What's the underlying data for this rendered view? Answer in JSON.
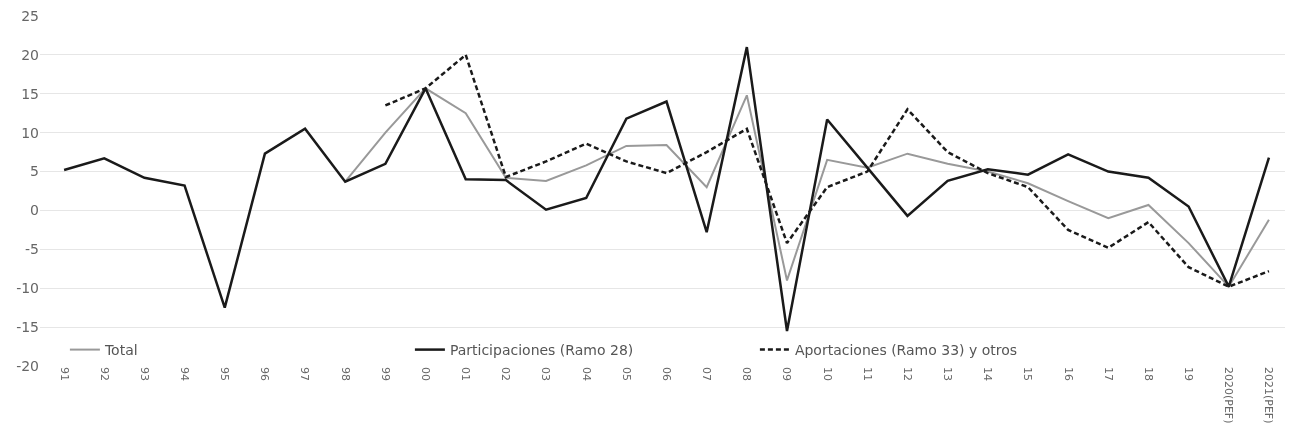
{
  "chart_data": {
    "type": "line",
    "categories": [
      "91",
      "92",
      "93",
      "94",
      "95",
      "96",
      "97",
      "98",
      "99",
      "00",
      "01",
      "02",
      "03",
      "04",
      "05",
      "06",
      "07",
      "08",
      "09",
      "10",
      "11",
      "12",
      "13",
      "14",
      "15",
      "16",
      "17",
      "18",
      "19",
      "2020(PEF)",
      "2021(PEF)"
    ],
    "series": [
      {
        "name": "Total",
        "color": "#999999",
        "line_style": "solid",
        "values": [
          null,
          null,
          null,
          null,
          null,
          null,
          null,
          3.7,
          10,
          15.7,
          12.5,
          4.2,
          3.8,
          5.8,
          8.3,
          8.4,
          3.0,
          14.8,
          -9,
          6.5,
          5.5,
          7.3,
          6.0,
          5.0,
          3.5,
          1.2,
          -1.0,
          0.7,
          -4.2,
          -9.8,
          -1.2
        ]
      },
      {
        "name": "Participaciones (Ramo 28)",
        "color": "#1a1a1a",
        "line_style": "solid",
        "values": [
          5.2,
          6.7,
          4.2,
          3.2,
          -12.5,
          7.3,
          10.5,
          3.7,
          6.0,
          15.7,
          4.0,
          3.9,
          0.1,
          1.6,
          11.8,
          14.0,
          -2.8,
          21,
          -15.5,
          11.7,
          5.5,
          -0.7,
          3.8,
          5.3,
          4.6,
          7.2,
          5.0,
          4.2,
          0.5,
          -9.8,
          6.8
        ]
      },
      {
        "name": "Aportaciones (Ramo 33) y otros",
        "color": "#1a1a1a",
        "line_style": "dashed",
        "values": [
          null,
          null,
          null,
          null,
          null,
          null,
          null,
          null,
          13.5,
          15.7,
          20,
          4.3,
          6.3,
          8.6,
          6.3,
          4.8,
          7.5,
          10.5,
          -4.2,
          3.0,
          5.0,
          13,
          7.5,
          4.8,
          3.0,
          -2.5,
          -4.8,
          -1.5,
          -7.3,
          -9.8,
          -7.8
        ]
      }
    ],
    "ylim": [
      -20,
      25
    ],
    "yticks": [
      -20,
      -15,
      -10,
      -5,
      0,
      5,
      10,
      15,
      20,
      25
    ],
    "grid": "y",
    "legend": "bottom",
    "marker": "none"
  }
}
